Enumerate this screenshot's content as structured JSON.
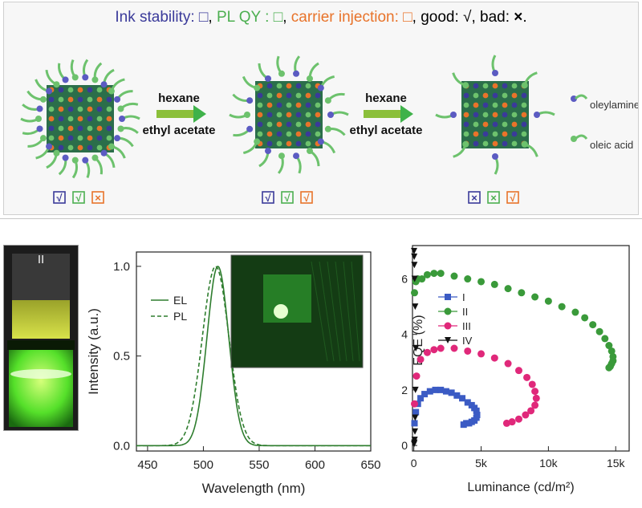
{
  "legend": {
    "ink": "Ink stability:",
    "box": "□",
    "comma1": ",",
    "plqy": "PL QY :",
    "comma2": ",",
    "carrier": "carrier injection:",
    "comma3": ",",
    "good": "good: √, bad:",
    "x": "×",
    "period": ".",
    "ink_color": "#3a3a9a",
    "plqy_color": "#4caf50",
    "carrier_color": "#e8732a"
  },
  "schematic": {
    "arrow1": {
      "solvent1": "hexane",
      "solvent2": "ethyl acetate"
    },
    "arrow2": {
      "solvent1": "hexane",
      "solvent2": "ethyl acetate"
    },
    "ligands": [
      {
        "name": "oleylamine",
        "color": "#5b5bc2"
      },
      {
        "name": "oleic acid",
        "color": "#6dc26d"
      }
    ],
    "status_sets": [
      [
        "√",
        "√",
        "×"
      ],
      [
        "√",
        "√",
        "√"
      ],
      [
        "×",
        "×",
        "√"
      ]
    ]
  },
  "photo": {
    "label": "II"
  },
  "chart_data": [
    {
      "type": "line",
      "xlabel": "Wavelength (nm)",
      "ylabel": "Intensity (a.u.)",
      "xlim": [
        440,
        650
      ],
      "ylim": [
        -0.03,
        1.08
      ],
      "xticks": [
        "450",
        "500",
        "550",
        "600",
        "650"
      ],
      "yticks": [
        "0.0",
        "0.5",
        "1.0"
      ],
      "series": [
        {
          "name": "EL",
          "style": "solid",
          "color": "#2e7d2e",
          "peak": 513,
          "fwhm": 23,
          "amplitude": 1.0
        },
        {
          "name": "PL",
          "style": "dashed",
          "color": "#2e7d2e",
          "peak": 511,
          "fwhm": 28,
          "amplitude": 1.0
        }
      ],
      "inset": "device photo"
    },
    {
      "type": "scatter",
      "xlabel": "Luminance (cd/m²)",
      "ylabel": "EQE (%)",
      "xlim": [
        -100,
        16000
      ],
      "ylim": [
        -0.2,
        7.2
      ],
      "xticks": [
        "0",
        "5k",
        "10k",
        "15k"
      ],
      "yticks": [
        "0",
        "2",
        "4",
        "6"
      ],
      "series": [
        {
          "name": "I",
          "color": "#3b5bc4",
          "marker": "square",
          "x": [
            50,
            150,
            300,
            500,
            800,
            1200,
            1600,
            2000,
            2400,
            2800,
            3200,
            3600,
            4000,
            4300,
            4500,
            4650,
            4700,
            4650,
            4500,
            4300,
            4100,
            3900,
            3700
          ],
          "y": [
            0.8,
            1.2,
            1.5,
            1.7,
            1.85,
            1.95,
            2.0,
            2.0,
            1.95,
            1.9,
            1.8,
            1.7,
            1.55,
            1.45,
            1.35,
            1.25,
            1.1,
            1.0,
            0.9,
            0.85,
            0.8,
            0.8,
            0.75
          ]
        },
        {
          "name": "II",
          "color": "#3a9a3a",
          "marker": "circle",
          "x": [
            50,
            150,
            300,
            600,
            1000,
            1500,
            2000,
            3000,
            4000,
            5000,
            6000,
            7000,
            8000,
            9000,
            10000,
            11000,
            12000,
            12700,
            13300,
            13800,
            14200,
            14500,
            14700,
            14800,
            14800,
            14700,
            14600,
            14500
          ],
          "y": [
            5.5,
            5.9,
            6.0,
            6.0,
            6.15,
            6.2,
            6.2,
            6.1,
            6.0,
            5.9,
            5.8,
            5.65,
            5.5,
            5.35,
            5.2,
            5.0,
            4.8,
            4.6,
            4.35,
            4.1,
            3.85,
            3.6,
            3.4,
            3.2,
            3.05,
            2.95,
            2.85,
            2.8
          ]
        },
        {
          "name": "III",
          "color": "#e0287a",
          "marker": "circle",
          "x": [
            50,
            200,
            500,
            1000,
            1500,
            2000,
            3000,
            4000,
            5000,
            6000,
            7000,
            7800,
            8400,
            8800,
            9000,
            9100,
            9000,
            8700,
            8300,
            7800,
            7300,
            6900
          ],
          "y": [
            1.5,
            2.5,
            3.1,
            3.35,
            3.45,
            3.5,
            3.5,
            3.4,
            3.3,
            3.15,
            2.95,
            2.7,
            2.45,
            2.2,
            1.95,
            1.7,
            1.45,
            1.25,
            1.1,
            0.95,
            0.85,
            0.8
          ]
        },
        {
          "name": "IV",
          "color": "#111111",
          "marker": "triangle",
          "x": [
            20,
            40,
            60,
            80,
            100,
            120,
            150,
            100,
            60,
            40,
            30,
            20
          ],
          "y": [
            0.05,
            0.1,
            0.2,
            0.5,
            1.0,
            2.0,
            3.5,
            5.0,
            6.0,
            6.5,
            6.8,
            7.0
          ]
        }
      ]
    }
  ]
}
